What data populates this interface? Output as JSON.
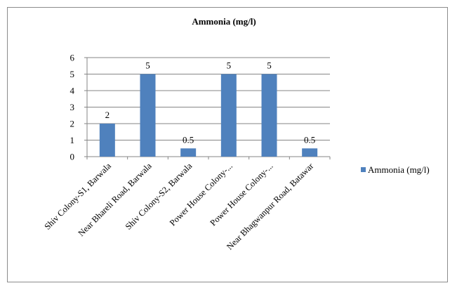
{
  "chart_data": {
    "type": "bar",
    "title": "Ammonia (mg/l)",
    "categories": [
      "Shiv Colony-S1, Barwala",
      "Near Bhareli Road, Barwala",
      "Shiv Colony-S2, Barwala",
      "Power House Colony-...",
      "Power House Colony-...",
      "Near Bhagwanpur Road, Batawar"
    ],
    "series": [
      {
        "name": "Ammonia (mg/l)",
        "values": [
          2,
          5,
          0.5,
          5,
          5,
          0.5
        ],
        "data_labels": [
          "2",
          "5",
          "0.5",
          "5",
          "5",
          "0.5"
        ],
        "color": "#4f81bd"
      }
    ],
    "ylim": [
      0,
      6
    ],
    "yticks": [
      "0",
      "1",
      "2",
      "3",
      "4",
      "5",
      "6"
    ],
    "grid": true,
    "legend_position": "right",
    "xlabel": "",
    "ylabel": ""
  }
}
